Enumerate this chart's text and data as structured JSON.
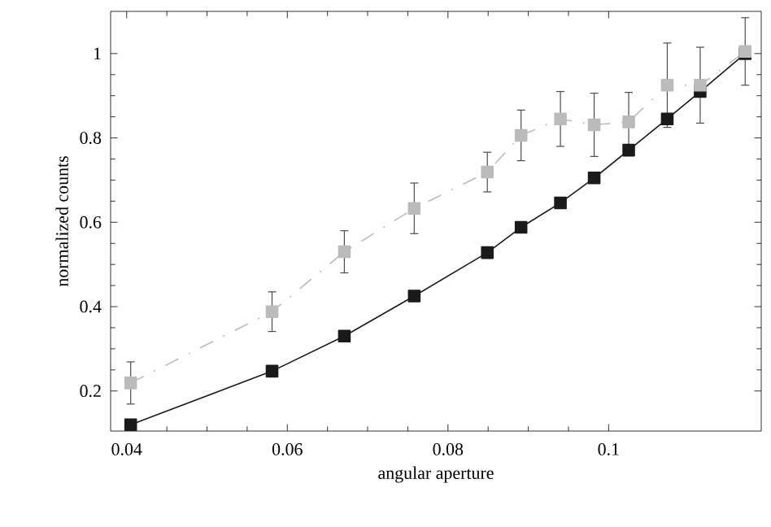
{
  "chart_data": {
    "type": "line",
    "xlabel": "angular aperture",
    "ylabel": "normalized counts",
    "x": [
      0.0405,
      0.0581,
      0.0671,
      0.0758,
      0.0849,
      0.0891,
      0.094,
      0.0982,
      0.1025,
      0.1073,
      0.1114,
      0.117
    ],
    "series": [
      {
        "color": "#1a1a1a",
        "line_style": "solid",
        "values": [
          0.12,
          0.247,
          0.33,
          0.425,
          0.528,
          0.588,
          0.646,
          0.705,
          0.771,
          0.845,
          0.91,
          1.0
        ]
      },
      {
        "color": "#bbbbbb",
        "line_style": "dashed",
        "values": [
          0.219,
          0.388,
          0.53,
          0.633,
          0.719,
          0.806,
          0.845,
          0.831,
          0.838,
          0.925,
          0.925,
          1.005
        ],
        "errors": [
          0.05,
          0.047,
          0.05,
          0.06,
          0.047,
          0.06,
          0.065,
          0.075,
          0.07,
          0.1,
          0.09,
          0.08
        ]
      }
    ],
    "marker": "square",
    "xlim": [
      0.038,
      0.119
    ],
    "ylim": [
      0.105,
      1.1
    ],
    "xticks": [
      0.04,
      0.06,
      0.08,
      0.1
    ],
    "yticks": [
      0.2,
      0.4,
      0.6,
      0.8,
      1
    ],
    "grid": false
  }
}
